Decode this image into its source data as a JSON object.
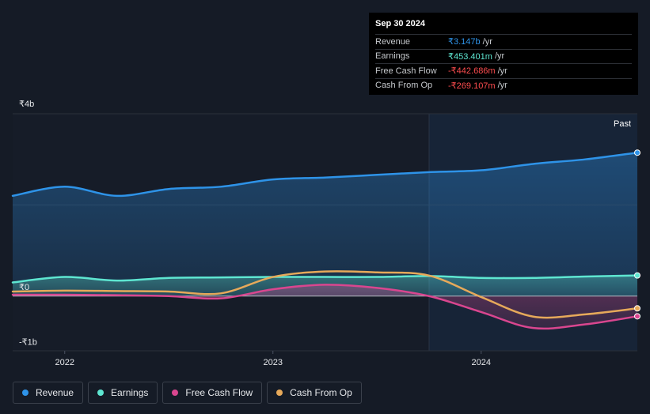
{
  "tooltip": {
    "date": "Sep 30 2024",
    "rows": [
      {
        "label": "Revenue",
        "value": "₹3.147b",
        "unit": "/yr",
        "color": "#2e93e8"
      },
      {
        "label": "Earnings",
        "value": "₹453.401m",
        "unit": "/yr",
        "color": "#5ee6d1"
      },
      {
        "label": "Free Cash Flow",
        "value": "-₹442.686m",
        "unit": "/yr",
        "color": "#ff4d4f"
      },
      {
        "label": "Cash From Op",
        "value": "-₹269.107m",
        "unit": "/yr",
        "color": "#ff4d4f"
      }
    ]
  },
  "legend": [
    {
      "label": "Revenue",
      "color": "#2e93e8"
    },
    {
      "label": "Earnings",
      "color": "#5ee6d1"
    },
    {
      "label": "Free Cash Flow",
      "color": "#d9468f"
    },
    {
      "label": "Cash From Op",
      "color": "#e6a95a"
    }
  ],
  "chart_data": {
    "type": "line",
    "title": "",
    "xlabel": "",
    "ylabel": "",
    "ylim": [
      -1.2,
      4.0
    ],
    "xlim": [
      2021.75,
      2024.75
    ],
    "y_tick_labels": [
      {
        "value": 4.0,
        "label": "₹4b"
      },
      {
        "value": 0.0,
        "label": "₹0"
      },
      {
        "value": -1.0,
        "label": "-₹1b"
      }
    ],
    "x_ticks": [
      {
        "value": 2022.0,
        "label": "2022"
      },
      {
        "value": 2023.0,
        "label": "2023"
      },
      {
        "value": 2024.0,
        "label": "2024"
      }
    ],
    "past_label": "Past",
    "past_start": 2023.75,
    "series": [
      {
        "name": "Revenue",
        "color": "#2e93e8",
        "fill": true,
        "x": [
          2021.75,
          2022.0,
          2022.25,
          2022.5,
          2022.75,
          2023.0,
          2023.25,
          2023.5,
          2023.75,
          2024.0,
          2024.25,
          2024.5,
          2024.75
        ],
        "values": [
          2.2,
          2.4,
          2.2,
          2.35,
          2.4,
          2.56,
          2.6,
          2.66,
          2.72,
          2.76,
          2.9,
          3.0,
          3.147
        ]
      },
      {
        "name": "Earnings",
        "color": "#5ee6d1",
        "fill": true,
        "x": [
          2021.75,
          2022.0,
          2022.25,
          2022.5,
          2022.75,
          2023.0,
          2023.25,
          2023.5,
          2023.75,
          2024.0,
          2024.25,
          2024.5,
          2024.75
        ],
        "values": [
          0.3,
          0.42,
          0.34,
          0.4,
          0.41,
          0.42,
          0.42,
          0.42,
          0.44,
          0.4,
          0.4,
          0.43,
          0.453
        ]
      },
      {
        "name": "Free Cash Flow",
        "color": "#d9468f",
        "fill": true,
        "x": [
          2021.75,
          2022.0,
          2022.25,
          2022.5,
          2022.75,
          2023.0,
          2023.25,
          2023.5,
          2023.75,
          2024.0,
          2024.25,
          2024.5,
          2024.75
        ],
        "values": [
          0.03,
          0.03,
          0.02,
          0.0,
          -0.05,
          0.15,
          0.25,
          0.18,
          0.0,
          -0.35,
          -0.7,
          -0.62,
          -0.443
        ]
      },
      {
        "name": "Cash From Op",
        "color": "#e6a95a",
        "fill": false,
        "x": [
          2021.75,
          2022.0,
          2022.25,
          2022.5,
          2022.75,
          2023.0,
          2023.25,
          2023.5,
          2023.75,
          2024.0,
          2024.25,
          2024.5,
          2024.75
        ],
        "values": [
          0.1,
          0.12,
          0.11,
          0.1,
          0.06,
          0.42,
          0.54,
          0.52,
          0.45,
          -0.02,
          -0.45,
          -0.4,
          -0.269
        ]
      }
    ]
  }
}
